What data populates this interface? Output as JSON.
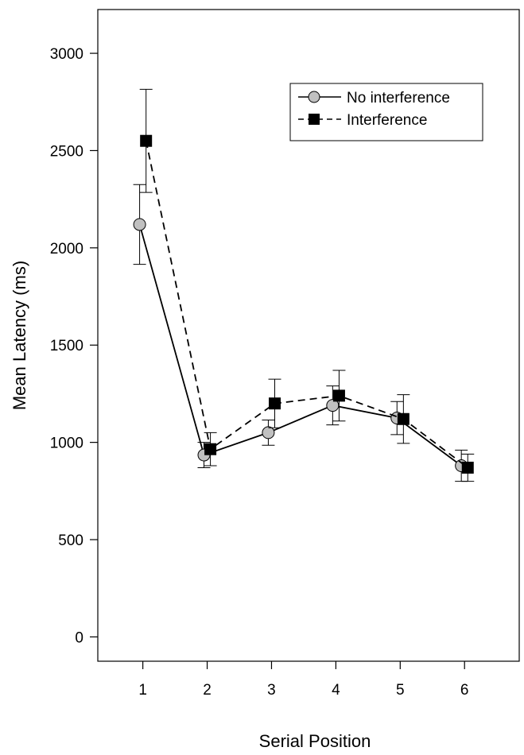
{
  "chart_data": {
    "type": "line",
    "title": "",
    "xlabel": "Serial Position",
    "ylabel": "Mean Latency (ms)",
    "x": [
      1,
      2,
      3,
      4,
      5,
      6
    ],
    "xticks": [
      "1",
      "2",
      "3",
      "4",
      "5",
      "6"
    ],
    "xlim": [
      0.3,
      6.85
    ],
    "ylim": [
      -125,
      3225
    ],
    "yticks": [
      0,
      500,
      1000,
      1500,
      2000,
      2500,
      3000
    ],
    "ytick_labels": [
      "0",
      "500",
      "1000",
      "1500",
      "2000",
      "2500",
      "3000"
    ],
    "grid": false,
    "legend_position": "top-right",
    "series": [
      {
        "name": "No interference",
        "line_style": "solid",
        "marker": "circle",
        "marker_color": "#c0c0c0",
        "x_offset": -0.05,
        "values": [
          2120,
          935,
          1050,
          1190,
          1125,
          880
        ],
        "error": [
          205,
          65,
          65,
          100,
          85,
          80
        ]
      },
      {
        "name": "Interference",
        "line_style": "dashed",
        "marker": "square",
        "marker_color": "#000000",
        "x_offset": 0.05,
        "values": [
          2550,
          965,
          1200,
          1240,
          1120,
          870
        ],
        "error": [
          265,
          85,
          125,
          130,
          125,
          70
        ]
      }
    ]
  }
}
